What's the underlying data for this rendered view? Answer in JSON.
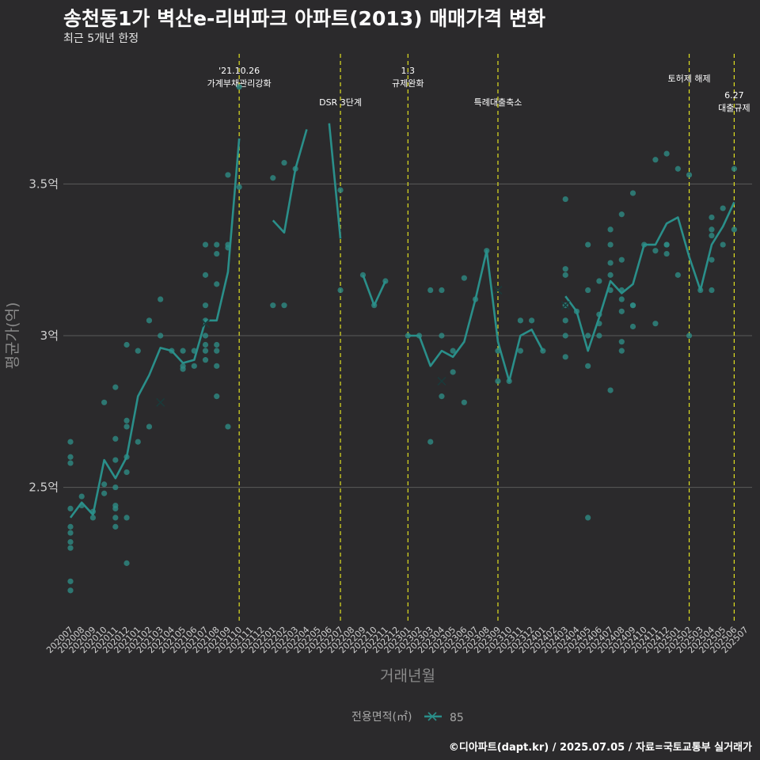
{
  "title": "송천동1가 벽산e-리버파크 아파트(2013) 매매가격 변화",
  "subtitle": "최근 5개년 한정",
  "credit": "©디아파트(dapt.kr) / 2025.07.05 / 자료=국토교통부 실거래가",
  "colors": {
    "background": "#2b2a2c",
    "series": "#2a8f8a",
    "point": "#2e8b85",
    "event_line": "#e0e020",
    "grid": "#5a5a5a"
  },
  "chart_data": {
    "type": "line",
    "xlabel": "거래년월",
    "ylabel": "평균가(억)",
    "categories": [
      "202007",
      "202008",
      "202009",
      "202010",
      "202011",
      "202012",
      "202101",
      "202102",
      "202103",
      "202104",
      "202105",
      "202106",
      "202107",
      "202108",
      "202109",
      "202110",
      "202111",
      "202112",
      "202201",
      "202202",
      "202203",
      "202204",
      "202205",
      "202206",
      "202207",
      "202208",
      "202209",
      "202210",
      "202211",
      "202212",
      "202301",
      "202302",
      "202303",
      "202304",
      "202305",
      "202306",
      "202307",
      "202308",
      "202309",
      "202310",
      "202311",
      "202312",
      "202401",
      "202402",
      "202403",
      "202404",
      "202405",
      "202406",
      "202407",
      "202408",
      "202409",
      "202410",
      "202411",
      "202412",
      "202501",
      "202502",
      "202503",
      "202504",
      "202505",
      "202506",
      "202507"
    ],
    "y_ticks": [
      {
        "value": 2.5,
        "label": "2.5억"
      },
      {
        "value": 3.0,
        "label": "3억"
      },
      {
        "value": 3.5,
        "label": "3.5억"
      }
    ],
    "ylim": [
      2.05,
      3.95
    ],
    "grid": true,
    "legend": {
      "title": "전용면적(㎡)",
      "placement": "bottom",
      "items": [
        {
          "label": "85"
        }
      ]
    },
    "series": [
      {
        "name": "85",
        "mean_line": [
          [
            "202007",
            2.4
          ],
          [
            "202008",
            2.45
          ],
          [
            "202009",
            2.41
          ],
          [
            "202010",
            2.59
          ],
          [
            "202011",
            2.53
          ],
          [
            "202012",
            2.6
          ],
          [
            "202101",
            2.8
          ],
          [
            "202102",
            2.87
          ],
          [
            "202103",
            2.96
          ],
          [
            "202104",
            2.95
          ],
          [
            "202105",
            2.91
          ],
          [
            "202106",
            2.92
          ],
          [
            "202107",
            3.05
          ],
          [
            "202108",
            3.05
          ],
          [
            "202109",
            3.21
          ],
          [
            "202110",
            3.65
          ],
          null,
          [
            "202201",
            3.38
          ],
          [
            "202202",
            3.34
          ],
          [
            "202203",
            3.55
          ],
          [
            "202204",
            3.68
          ],
          null,
          [
            "202206",
            3.7
          ],
          [
            "202207",
            3.32
          ],
          null,
          [
            "202209",
            3.2
          ],
          [
            "202210",
            3.1
          ],
          [
            "202211",
            3.18
          ],
          null,
          [
            "202301",
            3.0
          ],
          [
            "202302",
            3.0
          ],
          [
            "202303",
            2.9
          ],
          [
            "202304",
            2.95
          ],
          [
            "202305",
            2.93
          ],
          [
            "202306",
            2.98
          ],
          [
            "202307",
            3.12
          ],
          [
            "202308",
            3.28
          ],
          [
            "202309",
            2.98
          ],
          [
            "202310",
            2.85
          ],
          [
            "202311",
            3.0
          ],
          [
            "202312",
            3.02
          ],
          [
            "202401",
            2.95
          ],
          null,
          [
            "202403",
            3.13
          ],
          [
            "202404",
            3.08
          ],
          [
            "202405",
            2.95
          ],
          [
            "202406",
            3.06
          ],
          [
            "202407",
            3.18
          ],
          [
            "202408",
            3.14
          ],
          [
            "202409",
            3.17
          ],
          [
            "202410",
            3.3
          ],
          [
            "202411",
            3.3
          ],
          [
            "202412",
            3.37
          ],
          [
            "202501",
            3.39
          ],
          [
            "202502",
            3.26
          ],
          [
            "202503",
            3.15
          ],
          [
            "202504",
            3.3
          ],
          [
            "202505",
            3.36
          ],
          [
            "202506",
            3.44
          ]
        ],
        "points": [
          [
            "202007",
            2.65
          ],
          [
            "202007",
            2.6
          ],
          [
            "202007",
            2.58
          ],
          [
            "202007",
            2.43
          ],
          [
            "202007",
            2.37
          ],
          [
            "202007",
            2.35
          ],
          [
            "202007",
            2.32
          ],
          [
            "202007",
            2.3
          ],
          [
            "202007",
            2.19
          ],
          [
            "202007",
            2.16
          ],
          [
            "202008",
            2.47
          ],
          [
            "202008",
            2.44
          ],
          [
            "202009",
            2.42
          ],
          [
            "202009",
            2.4
          ],
          [
            "202010",
            2.78
          ],
          [
            "202010",
            2.51
          ],
          [
            "202010",
            2.48
          ],
          [
            "202011",
            2.83
          ],
          [
            "202011",
            2.66
          ],
          [
            "202011",
            2.59
          ],
          [
            "202011",
            2.5
          ],
          [
            "202011",
            2.44
          ],
          [
            "202011",
            2.43
          ],
          [
            "202011",
            2.4
          ],
          [
            "202011",
            2.37
          ],
          [
            "202012",
            2.97
          ],
          [
            "202012",
            2.72
          ],
          [
            "202012",
            2.7
          ],
          [
            "202012",
            2.6
          ],
          [
            "202012",
            2.55
          ],
          [
            "202012",
            2.4
          ],
          [
            "202012",
            2.25
          ],
          [
            "202101",
            2.95
          ],
          [
            "202101",
            2.65
          ],
          [
            "202102",
            3.05
          ],
          [
            "202102",
            2.7
          ],
          [
            "202103",
            3.12
          ],
          [
            "202103",
            3.0
          ],
          [
            "202104",
            2.95
          ],
          [
            "202105",
            2.95
          ],
          [
            "202105",
            2.9
          ],
          [
            "202105",
            2.89
          ],
          [
            "202106",
            2.95
          ],
          [
            "202106",
            2.9
          ],
          [
            "202107",
            3.3
          ],
          [
            "202107",
            3.2
          ],
          [
            "202107",
            3.1
          ],
          [
            "202107",
            3.05
          ],
          [
            "202107",
            3.0
          ],
          [
            "202107",
            2.97
          ],
          [
            "202107",
            2.95
          ],
          [
            "202107",
            2.92
          ],
          [
            "202108",
            3.3
          ],
          [
            "202108",
            3.27
          ],
          [
            "202108",
            3.17
          ],
          [
            "202108",
            2.97
          ],
          [
            "202108",
            2.95
          ],
          [
            "202108",
            2.9
          ],
          [
            "202108",
            2.8
          ],
          [
            "202109",
            3.53
          ],
          [
            "202109",
            3.3
          ],
          [
            "202109",
            3.29
          ],
          [
            "202109",
            2.7
          ],
          [
            "202110",
            3.82
          ],
          [
            "202110",
            3.49
          ],
          [
            "202201",
            3.52
          ],
          [
            "202201",
            3.1
          ],
          [
            "202202",
            3.57
          ],
          [
            "202202",
            3.1
          ],
          [
            "202203",
            3.55
          ],
          [
            "202207",
            3.48
          ],
          [
            "202207",
            3.15
          ],
          [
            "202209",
            3.2
          ],
          [
            "202210",
            3.1
          ],
          [
            "202211",
            3.18
          ],
          [
            "202301",
            3.0
          ],
          [
            "202302",
            3.0
          ],
          [
            "202303",
            3.15
          ],
          [
            "202303",
            2.65
          ],
          [
            "202304",
            3.15
          ],
          [
            "202304",
            3.0
          ],
          [
            "202304",
            2.8
          ],
          [
            "202305",
            2.95
          ],
          [
            "202305",
            2.88
          ],
          [
            "202306",
            3.19
          ],
          [
            "202306",
            2.78
          ],
          [
            "202307",
            3.12
          ],
          [
            "202308",
            3.28
          ],
          [
            "202309",
            2.95
          ],
          [
            "202309",
            2.85
          ],
          [
            "202310",
            2.85
          ],
          [
            "202311",
            3.05
          ],
          [
            "202311",
            2.95
          ],
          [
            "202312",
            3.05
          ],
          [
            "202401",
            2.95
          ],
          [
            "202403",
            3.45
          ],
          [
            "202403",
            3.22
          ],
          [
            "202403",
            3.2
          ],
          [
            "202403",
            3.1
          ],
          [
            "202403",
            3.05
          ],
          [
            "202403",
            3.0
          ],
          [
            "202403",
            2.93
          ],
          [
            "202404",
            3.08
          ],
          [
            "202405",
            3.3
          ],
          [
            "202405",
            3.15
          ],
          [
            "202405",
            3.0
          ],
          [
            "202405",
            2.9
          ],
          [
            "202405",
            2.4
          ],
          [
            "202406",
            3.18
          ],
          [
            "202406",
            3.07
          ],
          [
            "202406",
            3.04
          ],
          [
            "202406",
            3.0
          ],
          [
            "202407",
            3.35
          ],
          [
            "202407",
            3.3
          ],
          [
            "202407",
            3.24
          ],
          [
            "202407",
            3.2
          ],
          [
            "202407",
            3.15
          ],
          [
            "202407",
            2.82
          ],
          [
            "202408",
            3.4
          ],
          [
            "202408",
            3.25
          ],
          [
            "202408",
            3.15
          ],
          [
            "202408",
            3.12
          ],
          [
            "202408",
            3.08
          ],
          [
            "202408",
            2.98
          ],
          [
            "202408",
            2.95
          ],
          [
            "202409",
            3.47
          ],
          [
            "202409",
            3.1
          ],
          [
            "202409",
            3.1
          ],
          [
            "202409",
            3.03
          ],
          [
            "202410",
            3.3
          ],
          [
            "202411",
            3.58
          ],
          [
            "202411",
            3.28
          ],
          [
            "202411",
            3.04
          ],
          [
            "202412",
            3.6
          ],
          [
            "202412",
            3.3
          ],
          [
            "202412",
            3.3
          ],
          [
            "202412",
            3.27
          ],
          [
            "202501",
            3.55
          ],
          [
            "202501",
            3.2
          ],
          [
            "202502",
            3.53
          ],
          [
            "202502",
            3.0
          ],
          [
            "202503",
            3.15
          ],
          [
            "202504",
            3.39
          ],
          [
            "202504",
            3.35
          ],
          [
            "202504",
            3.33
          ],
          [
            "202504",
            3.25
          ],
          [
            "202504",
            3.15
          ],
          [
            "202505",
            3.42
          ],
          [
            "202505",
            3.3
          ],
          [
            "202506",
            3.55
          ],
          [
            "202506",
            3.35
          ]
        ],
        "x_markers": [
          [
            "202103",
            2.78
          ],
          [
            "202107",
            3.04
          ],
          [
            "202304",
            2.85
          ],
          [
            "202309",
            3.15
          ],
          [
            "202403",
            3.1
          ]
        ]
      }
    ],
    "events": [
      {
        "x": "202110",
        "lines": [
          "'21.10.26",
          "가계부채관리강화"
        ],
        "row": 0
      },
      {
        "x": "202207",
        "lines": [
          "DSR 3단계"
        ],
        "row": 2
      },
      {
        "x": "202301",
        "lines": [
          "1.3",
          "규제완화"
        ],
        "row": 0
      },
      {
        "x": "202309",
        "lines": [
          "특례대출축소"
        ],
        "row": 2
      },
      {
        "x": "202502",
        "lines": [
          "토허제 해제"
        ],
        "row": 1
      },
      {
        "x": "202506",
        "lines": [
          "6.27",
          "대출규제"
        ],
        "row": 3
      }
    ]
  }
}
